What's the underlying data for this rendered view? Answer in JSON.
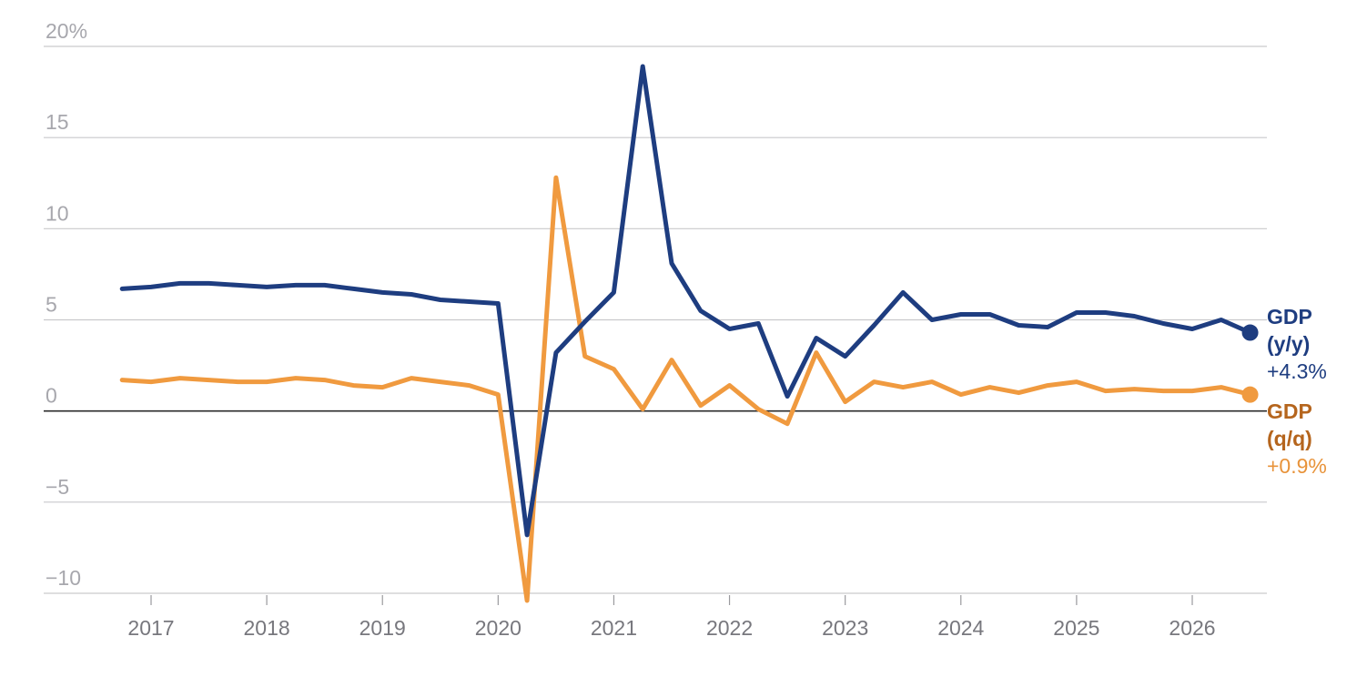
{
  "chart_data": {
    "type": "line",
    "title": "",
    "xlabel": "",
    "ylabel": "",
    "ylim": [
      -10,
      20
    ],
    "xlim": [
      2016.25,
      2026.9
    ],
    "y_ticks": [
      -10,
      -5,
      0,
      5,
      10,
      15,
      20
    ],
    "y_tick_labels": [
      "−10",
      "−5",
      "0",
      "5",
      "10",
      "15",
      "20%"
    ],
    "x_ticks": [
      2017,
      2018,
      2019,
      2020,
      2021,
      2022,
      2023,
      2024,
      2025,
      2026
    ],
    "x_tick_labels": [
      "2017",
      "2018",
      "2019",
      "2020",
      "2021",
      "2022",
      "2023",
      "2024",
      "2025",
      "2026"
    ],
    "grid": true,
    "legend": "end-of-line labels, right",
    "x": [
      2016.75,
      2017.0,
      2017.25,
      2017.5,
      2017.75,
      2018.0,
      2018.25,
      2018.5,
      2018.75,
      2019.0,
      2019.25,
      2019.5,
      2019.75,
      2020.0,
      2020.25,
      2020.5,
      2020.75,
      2021.0,
      2021.25,
      2021.5,
      2021.75,
      2022.0,
      2022.25,
      2022.5,
      2022.75,
      2023.0,
      2023.25,
      2023.5,
      2023.75,
      2024.0,
      2024.25,
      2024.5,
      2024.75,
      2025.0,
      2025.25,
      2025.5,
      2025.75,
      2026.0,
      2026.25,
      2026.5
    ],
    "series": [
      {
        "name": "GDP (y/y)",
        "label_lines": [
          "GDP",
          "(y/y)"
        ],
        "end_label": "+4.3%",
        "color": "#1e3d80",
        "label_color": "#1e3d80",
        "value_color": "#1e3d80",
        "values": [
          6.7,
          6.8,
          7.0,
          7.0,
          6.9,
          6.8,
          6.9,
          6.9,
          6.7,
          6.5,
          6.4,
          6.1,
          6.0,
          5.9,
          -6.8,
          3.2,
          4.9,
          6.5,
          18.9,
          8.1,
          5.5,
          4.5,
          4.8,
          0.8,
          4.0,
          3.0,
          4.7,
          6.5,
          5.0,
          5.3,
          5.3,
          4.7,
          4.6,
          5.4,
          5.4,
          5.2,
          4.8,
          4.5,
          5.0,
          4.3
        ]
      },
      {
        "name": "GDP (q/q)",
        "label_lines": [
          "GDP",
          "(q/q)"
        ],
        "end_label": "+0.9%",
        "color": "#f09a3f",
        "label_color": "#b5651d",
        "value_color": "#e8933a",
        "values": [
          1.7,
          1.6,
          1.8,
          1.7,
          1.6,
          1.6,
          1.8,
          1.7,
          1.4,
          1.3,
          1.8,
          1.6,
          1.4,
          0.9,
          -10.4,
          12.8,
          3.0,
          2.3,
          0.1,
          2.8,
          0.3,
          1.4,
          0.1,
          -0.7,
          3.2,
          0.5,
          1.6,
          1.3,
          1.6,
          0.9,
          1.3,
          1.0,
          1.4,
          1.6,
          1.1,
          1.2,
          1.1,
          1.1,
          1.3,
          0.9
        ]
      }
    ]
  }
}
